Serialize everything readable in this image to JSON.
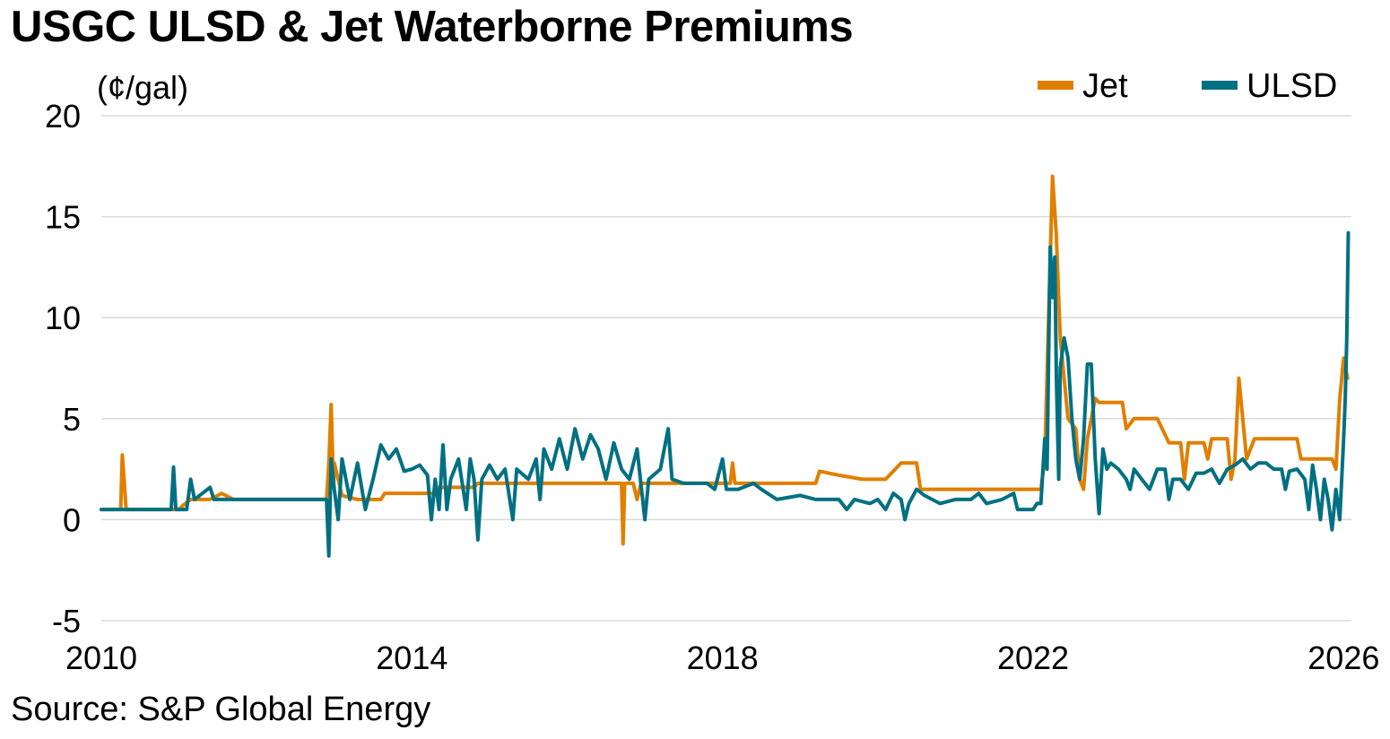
{
  "chart_data": {
    "type": "line",
    "title": "USGC ULSD & Jet Waterborne Premiums",
    "ylabel": "(¢/gal)",
    "xlabel": "",
    "source": "Source: S&P Global Energy",
    "xlim": [
      2010,
      2026.1
    ],
    "ylim": [
      -5,
      20
    ],
    "yticks": [
      -5,
      0,
      5,
      10,
      15,
      20
    ],
    "xticks": [
      2010,
      2014,
      2018,
      2022,
      2026
    ],
    "grid": true,
    "legend_position": "top-right",
    "colors": {
      "jet": "#e07f00",
      "ulsd": "#007082",
      "grid": "#d9d9d9"
    },
    "series": [
      {
        "name": "Jet",
        "color": "#e07f00",
        "points": [
          [
            2010.0,
            0.5
          ],
          [
            2010.25,
            0.5
          ],
          [
            2010.27,
            3.2
          ],
          [
            2010.32,
            0.5
          ],
          [
            2011.0,
            0.5
          ],
          [
            2011.05,
            0.7
          ],
          [
            2011.15,
            1.0
          ],
          [
            2011.4,
            1.0
          ],
          [
            2011.55,
            1.3
          ],
          [
            2011.7,
            1.0
          ],
          [
            2012.9,
            1.0
          ],
          [
            2012.93,
            2.8
          ],
          [
            2012.96,
            5.7
          ],
          [
            2012.99,
            1.6
          ],
          [
            2013.0,
            2.8
          ],
          [
            2013.1,
            1.2
          ],
          [
            2013.3,
            1.0
          ],
          [
            2013.6,
            1.0
          ],
          [
            2013.65,
            1.3
          ],
          [
            2014.0,
            1.3
          ],
          [
            2014.3,
            1.3
          ],
          [
            2014.35,
            1.6
          ],
          [
            2014.8,
            1.6
          ],
          [
            2014.85,
            1.8
          ],
          [
            2015.5,
            1.8
          ],
          [
            2016.7,
            1.8
          ],
          [
            2016.72,
            -1.2
          ],
          [
            2016.74,
            1.8
          ],
          [
            2016.85,
            1.8
          ],
          [
            2016.9,
            1.0
          ],
          [
            2016.95,
            1.8
          ],
          [
            2017.3,
            1.8
          ],
          [
            2017.8,
            1.8
          ],
          [
            2018.0,
            1.8
          ],
          [
            2018.1,
            1.8
          ],
          [
            2018.13,
            2.8
          ],
          [
            2018.16,
            1.8
          ],
          [
            2019.0,
            1.8
          ],
          [
            2019.2,
            1.8
          ],
          [
            2019.25,
            2.4
          ],
          [
            2019.5,
            2.2
          ],
          [
            2019.8,
            2.0
          ],
          [
            2020.1,
            2.0
          ],
          [
            2020.2,
            2.4
          ],
          [
            2020.3,
            2.8
          ],
          [
            2020.5,
            2.8
          ],
          [
            2020.55,
            1.5
          ],
          [
            2021.0,
            1.5
          ],
          [
            2022.1,
            1.5
          ],
          [
            2022.15,
            3.0
          ],
          [
            2022.2,
            10.0
          ],
          [
            2022.25,
            17.0
          ],
          [
            2022.3,
            14.0
          ],
          [
            2022.35,
            9.0
          ],
          [
            2022.4,
            7.0
          ],
          [
            2022.45,
            5.0
          ],
          [
            2022.55,
            4.5
          ],
          [
            2022.6,
            2.0
          ],
          [
            2022.65,
            1.5
          ],
          [
            2022.7,
            4.0
          ],
          [
            2022.8,
            6.0
          ],
          [
            2022.85,
            5.8
          ],
          [
            2023.0,
            5.8
          ],
          [
            2023.15,
            5.8
          ],
          [
            2023.2,
            4.5
          ],
          [
            2023.3,
            5.0
          ],
          [
            2023.6,
            5.0
          ],
          [
            2023.75,
            3.8
          ],
          [
            2023.9,
            3.8
          ],
          [
            2023.95,
            2.0
          ],
          [
            2024.0,
            3.8
          ],
          [
            2024.2,
            3.8
          ],
          [
            2024.25,
            3.0
          ],
          [
            2024.3,
            4.0
          ],
          [
            2024.5,
            4.0
          ],
          [
            2024.55,
            2.0
          ],
          [
            2024.6,
            3.0
          ],
          [
            2024.65,
            7.0
          ],
          [
            2024.7,
            5.0
          ],
          [
            2024.75,
            3.0
          ],
          [
            2024.85,
            4.0
          ],
          [
            2025.0,
            4.0
          ],
          [
            2025.4,
            4.0
          ],
          [
            2025.45,
            3.0
          ],
          [
            2025.6,
            3.0
          ],
          [
            2025.85,
            3.0
          ],
          [
            2025.9,
            2.5
          ],
          [
            2025.95,
            6.0
          ],
          [
            2026.0,
            8.0
          ],
          [
            2026.05,
            7.0
          ]
        ]
      },
      {
        "name": "ULSD",
        "color": "#007082",
        "points": [
          [
            2010.0,
            0.5
          ],
          [
            2010.3,
            0.5
          ],
          [
            2010.6,
            0.5
          ],
          [
            2010.9,
            0.5
          ],
          [
            2010.93,
            2.6
          ],
          [
            2010.96,
            0.5
          ],
          [
            2011.1,
            0.5
          ],
          [
            2011.15,
            2.0
          ],
          [
            2011.2,
            1.0
          ],
          [
            2011.4,
            1.6
          ],
          [
            2011.45,
            1.0
          ],
          [
            2012.6,
            1.0
          ],
          [
            2012.9,
            1.0
          ],
          [
            2012.93,
            -1.8
          ],
          [
            2012.96,
            3.0
          ],
          [
            2013.0,
            1.5
          ],
          [
            2013.05,
            0.0
          ],
          [
            2013.1,
            3.0
          ],
          [
            2013.2,
            1.0
          ],
          [
            2013.3,
            2.8
          ],
          [
            2013.4,
            0.5
          ],
          [
            2013.5,
            2.0
          ],
          [
            2013.6,
            3.7
          ],
          [
            2013.7,
            3.0
          ],
          [
            2013.8,
            3.5
          ],
          [
            2013.9,
            2.4
          ],
          [
            2014.0,
            2.5
          ],
          [
            2014.1,
            2.7
          ],
          [
            2014.2,
            2.2
          ],
          [
            2014.25,
            0.0
          ],
          [
            2014.3,
            2.0
          ],
          [
            2014.35,
            0.5
          ],
          [
            2014.4,
            3.7
          ],
          [
            2014.45,
            0.5
          ],
          [
            2014.5,
            2.0
          ],
          [
            2014.6,
            3.0
          ],
          [
            2014.7,
            0.5
          ],
          [
            2014.75,
            3.0
          ],
          [
            2014.8,
            2.0
          ],
          [
            2014.85,
            -1.0
          ],
          [
            2014.9,
            2.0
          ],
          [
            2015.0,
            2.7
          ],
          [
            2015.1,
            2.0
          ],
          [
            2015.2,
            2.5
          ],
          [
            2015.3,
            0.0
          ],
          [
            2015.35,
            2.5
          ],
          [
            2015.5,
            2.0
          ],
          [
            2015.6,
            3.0
          ],
          [
            2015.65,
            1.0
          ],
          [
            2015.7,
            3.5
          ],
          [
            2015.8,
            2.5
          ],
          [
            2015.9,
            4.0
          ],
          [
            2016.0,
            2.5
          ],
          [
            2016.1,
            4.5
          ],
          [
            2016.2,
            3.0
          ],
          [
            2016.3,
            4.2
          ],
          [
            2016.4,
            3.5
          ],
          [
            2016.5,
            2.0
          ],
          [
            2016.6,
            3.8
          ],
          [
            2016.7,
            2.5
          ],
          [
            2016.8,
            2.0
          ],
          [
            2016.9,
            3.5
          ],
          [
            2017.0,
            0.0
          ],
          [
            2017.05,
            2.0
          ],
          [
            2017.2,
            2.5
          ],
          [
            2017.3,
            4.5
          ],
          [
            2017.35,
            2.0
          ],
          [
            2017.5,
            1.8
          ],
          [
            2017.8,
            1.8
          ],
          [
            2017.9,
            1.5
          ],
          [
            2018.0,
            3.0
          ],
          [
            2018.05,
            1.5
          ],
          [
            2018.2,
            1.5
          ],
          [
            2018.4,
            1.8
          ],
          [
            2018.5,
            1.5
          ],
          [
            2018.7,
            1.0
          ],
          [
            2019.0,
            1.2
          ],
          [
            2019.2,
            1.0
          ],
          [
            2019.4,
            1.0
          ],
          [
            2019.5,
            1.0
          ],
          [
            2019.6,
            0.5
          ],
          [
            2019.7,
            1.0
          ],
          [
            2019.9,
            0.8
          ],
          [
            2020.0,
            1.0
          ],
          [
            2020.1,
            0.5
          ],
          [
            2020.2,
            1.3
          ],
          [
            2020.3,
            1.0
          ],
          [
            2020.35,
            0.0
          ],
          [
            2020.4,
            0.8
          ],
          [
            2020.5,
            1.5
          ],
          [
            2020.6,
            1.2
          ],
          [
            2020.7,
            1.0
          ],
          [
            2020.8,
            0.8
          ],
          [
            2021.0,
            1.0
          ],
          [
            2021.2,
            1.0
          ],
          [
            2021.3,
            1.3
          ],
          [
            2021.4,
            0.8
          ],
          [
            2021.6,
            1.0
          ],
          [
            2021.75,
            1.3
          ],
          [
            2021.8,
            0.5
          ],
          [
            2022.0,
            0.5
          ],
          [
            2022.05,
            0.8
          ],
          [
            2022.1,
            0.8
          ],
          [
            2022.15,
            4.0
          ],
          [
            2022.18,
            2.5
          ],
          [
            2022.2,
            8.0
          ],
          [
            2022.22,
            13.5
          ],
          [
            2022.25,
            11.0
          ],
          [
            2022.28,
            13.0
          ],
          [
            2022.3,
            7.0
          ],
          [
            2022.33,
            2.0
          ],
          [
            2022.35,
            7.5
          ],
          [
            2022.4,
            9.0
          ],
          [
            2022.45,
            8.0
          ],
          [
            2022.5,
            5.0
          ],
          [
            2022.55,
            3.0
          ],
          [
            2022.6,
            2.0
          ],
          [
            2022.65,
            4.0
          ],
          [
            2022.7,
            7.7
          ],
          [
            2022.75,
            7.7
          ],
          [
            2022.8,
            3.0
          ],
          [
            2022.85,
            0.3
          ],
          [
            2022.9,
            3.5
          ],
          [
            2022.95,
            2.5
          ],
          [
            2023.0,
            2.8
          ],
          [
            2023.1,
            2.5
          ],
          [
            2023.2,
            2.0
          ],
          [
            2023.25,
            1.5
          ],
          [
            2023.3,
            2.5
          ],
          [
            2023.4,
            2.0
          ],
          [
            2023.5,
            1.5
          ],
          [
            2023.6,
            2.5
          ],
          [
            2023.7,
            2.5
          ],
          [
            2023.75,
            1.0
          ],
          [
            2023.8,
            2.0
          ],
          [
            2023.9,
            2.0
          ],
          [
            2024.0,
            1.5
          ],
          [
            2024.1,
            2.3
          ],
          [
            2024.2,
            2.3
          ],
          [
            2024.3,
            2.5
          ],
          [
            2024.4,
            1.8
          ],
          [
            2024.5,
            2.5
          ],
          [
            2024.6,
            2.7
          ],
          [
            2024.7,
            3.0
          ],
          [
            2024.8,
            2.5
          ],
          [
            2024.9,
            2.8
          ],
          [
            2025.0,
            2.8
          ],
          [
            2025.1,
            2.5
          ],
          [
            2025.2,
            2.5
          ],
          [
            2025.25,
            1.5
          ],
          [
            2025.3,
            2.4
          ],
          [
            2025.4,
            2.5
          ],
          [
            2025.5,
            2.0
          ],
          [
            2025.55,
            0.5
          ],
          [
            2025.6,
            2.7
          ],
          [
            2025.65,
            1.5
          ],
          [
            2025.7,
            0.0
          ],
          [
            2025.75,
            2.0
          ],
          [
            2025.8,
            1.0
          ],
          [
            2025.85,
            -0.5
          ],
          [
            2025.9,
            1.5
          ],
          [
            2025.95,
            0.0
          ],
          [
            2026.0,
            4.0
          ],
          [
            2026.02,
            6.0
          ],
          [
            2026.04,
            9.0
          ],
          [
            2026.06,
            14.2
          ]
        ]
      }
    ]
  }
}
